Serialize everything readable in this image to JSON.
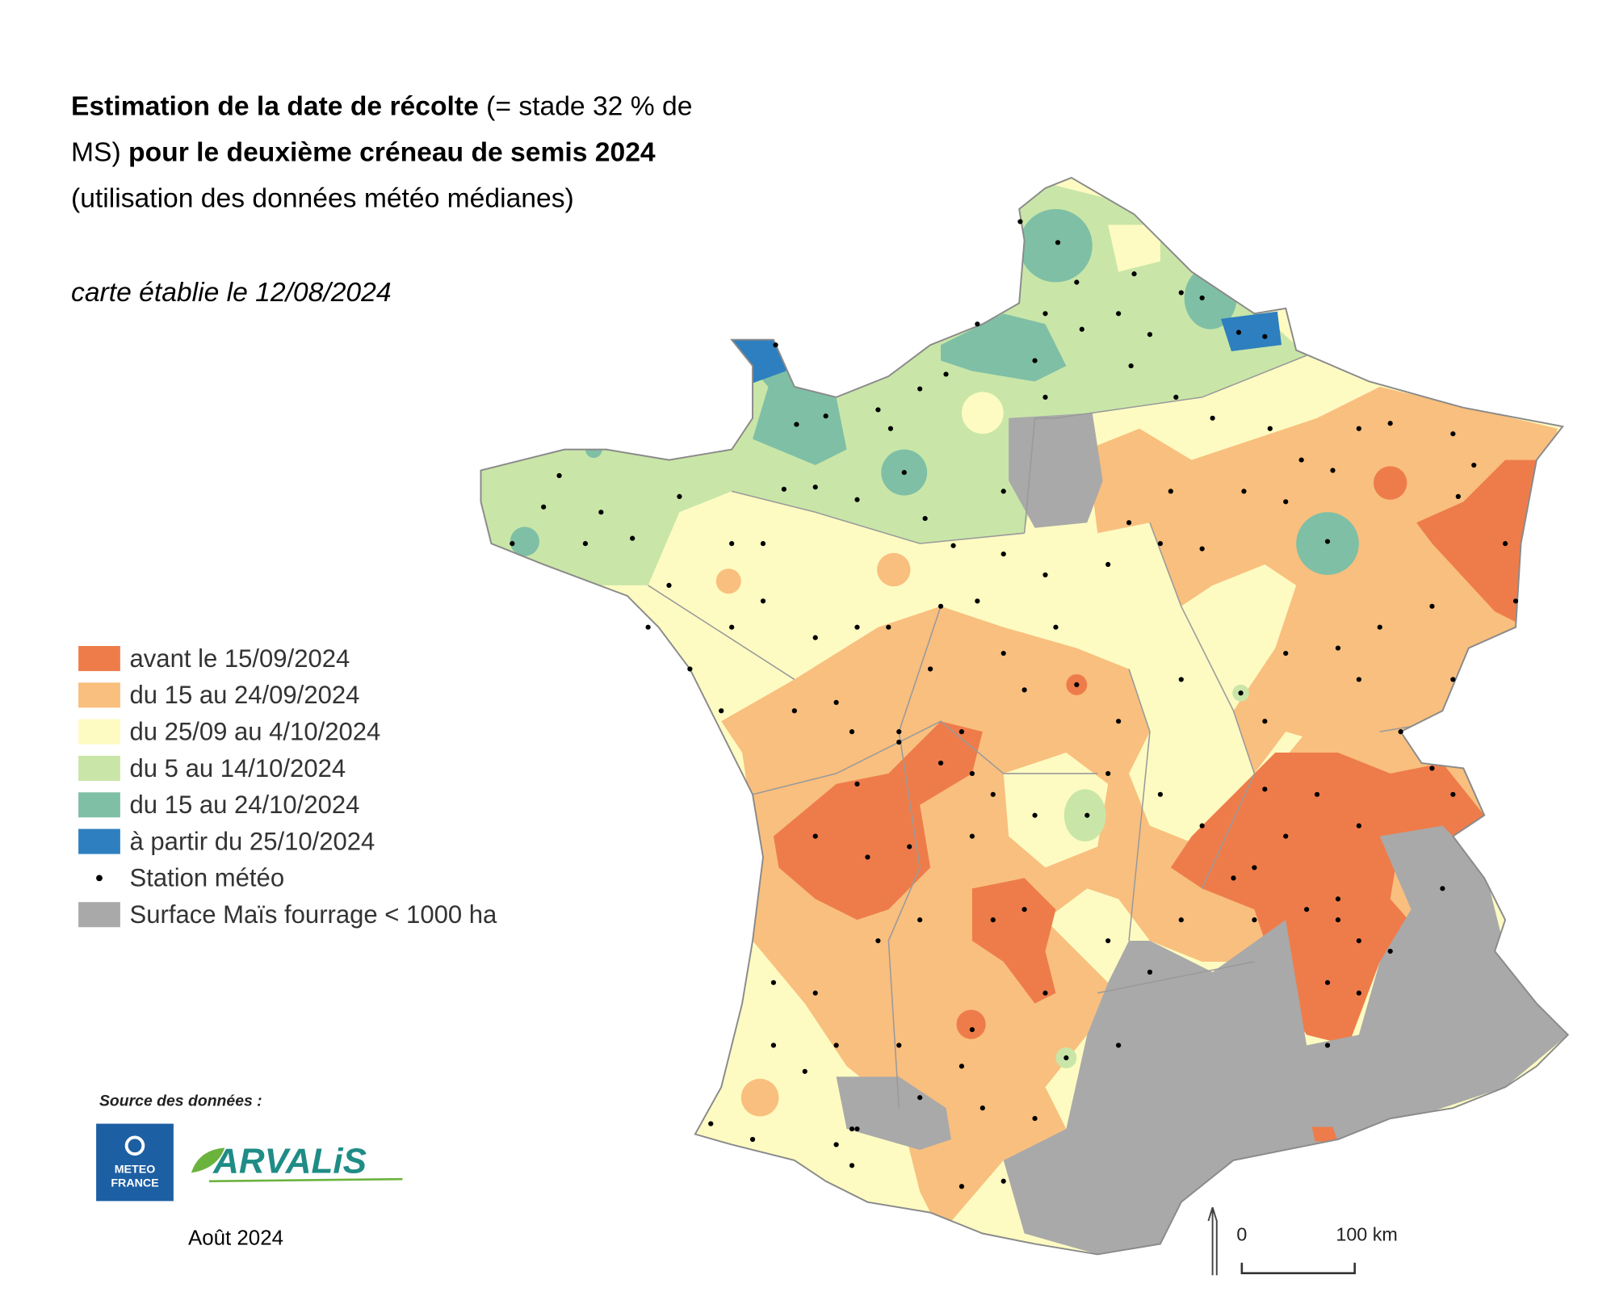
{
  "title": {
    "line1_bold": "Estimation de la date de récolte",
    "line1_rest": "(= stade 32 % de",
    "line2_start": "MS)",
    "line2_bold": "pour le deuxième créneau de semis 2024",
    "line3": "(utilisation des données météo médianes)"
  },
  "date_note": "carte établie le 12/08/2024",
  "legend": {
    "classes": [
      {
        "label": "avant le 15/09/2024",
        "color": "#ee7c4b"
      },
      {
        "label": "du 15 au 24/09/2024",
        "color": "#f9bf7e"
      },
      {
        "label": "du 25/09 au 4/10/2024",
        "color": "#fdfbc2"
      },
      {
        "label": "du 5 au 14/10/2024",
        "color": "#c9e6a8"
      },
      {
        "label": "du 15 au 24/10/2024",
        "color": "#7fbfa6"
      },
      {
        "label": "à partir du 25/10/2024",
        "color": "#2e7fbf"
      }
    ],
    "stations": "Station météo",
    "excluded": {
      "label": "Surface Maïs fourrage < 1000 ha",
      "color": "#a9a9a9"
    }
  },
  "source": {
    "label": "Source des données :",
    "meteo_logo": [
      "METEO",
      "FRANCE"
    ],
    "arvalis_logo": "ARVALiS"
  },
  "footer_date": "Août 2024",
  "scale": {
    "zero": "0",
    "distance": "100 km"
  }
}
